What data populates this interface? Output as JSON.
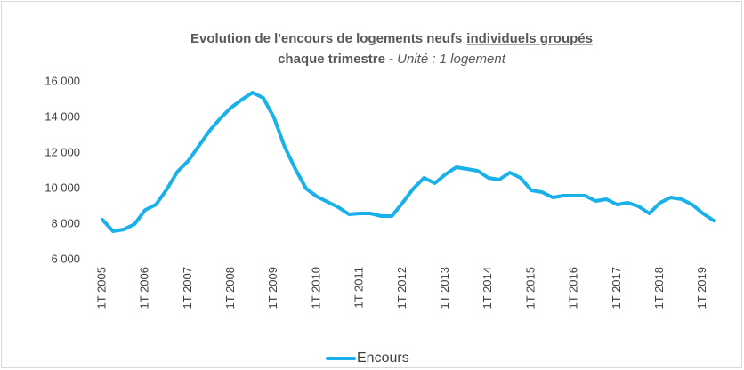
{
  "chart_data": {
    "type": "line",
    "title": "Evolution de l'encours de logements neufs",
    "title_emphasis": "individuels groupés",
    "subtitle": "chaque trimestre -",
    "unit": "Unité : 1 logement",
    "categories": [
      "1T 2005",
      null,
      null,
      null,
      "1T 2006",
      null,
      null,
      null,
      "1T 2007",
      null,
      null,
      null,
      "1T 2008",
      null,
      null,
      null,
      "1T 2009",
      null,
      null,
      null,
      "1T 2010",
      null,
      null,
      null,
      "1T 2011",
      null,
      null,
      null,
      "1T 2012",
      null,
      null,
      null,
      "1T 2013",
      null,
      null,
      null,
      "1T 2014",
      null,
      null,
      null,
      "1T 2015",
      null,
      null,
      null,
      "1T 2016",
      null,
      null,
      null,
      "1T 2017",
      null,
      null,
      null,
      "1T 2018",
      null,
      null,
      null,
      "1T 2019",
      null
    ],
    "series": [
      {
        "name": "Encours",
        "color": "#1ab0ea",
        "values": [
          8250,
          7600,
          7700,
          8000,
          8800,
          9100,
          9950,
          10950,
          11550,
          12400,
          13250,
          13950,
          14550,
          15000,
          15400,
          15100,
          14000,
          12350,
          11100,
          10000,
          9550,
          9250,
          8950,
          8550,
          8600,
          8600,
          8450,
          8450,
          9200,
          10000,
          10600,
          10300,
          10800,
          11200,
          11100,
          11000,
          10600,
          10500,
          10900,
          10600,
          9900,
          9800,
          9500,
          9600,
          9600,
          9600,
          9300,
          9400,
          9100,
          9200,
          9000,
          8600,
          9200,
          9500,
          9400,
          9100,
          8600,
          8200
        ]
      }
    ],
    "ylim": [
      6000,
      16000
    ],
    "yticks": [
      {
        "value": 6000,
        "label": "6 000"
      },
      {
        "value": 8000,
        "label": "8 000"
      },
      {
        "value": 10000,
        "label": "10 000"
      },
      {
        "value": 12000,
        "label": "12 000"
      },
      {
        "value": 14000,
        "label": "14 000"
      },
      {
        "value": 16000,
        "label": "16 000"
      }
    ],
    "grid": false,
    "legend": "bottom"
  }
}
